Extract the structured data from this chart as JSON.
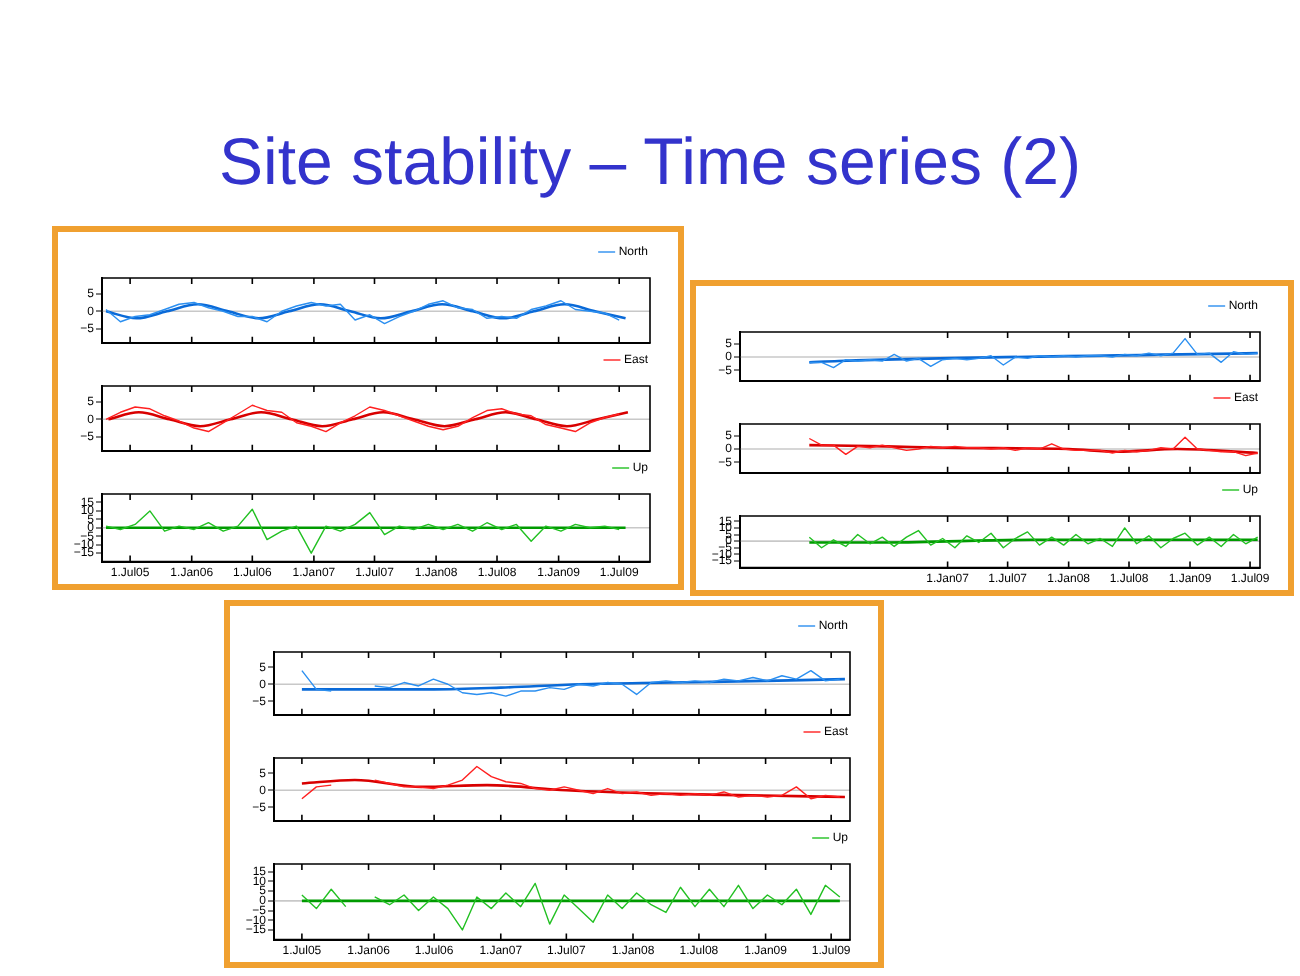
{
  "chart_data": [
    {
      "type": "line",
      "title": "Site stability – Time series (2)",
      "xlim": [
        "2005-04-08",
        "2009-10-01"
      ],
      "xticks": [
        {
          "value": "2005-07-01",
          "label": null
        },
        {
          "value": "2006-01-01",
          "label": null
        },
        {
          "value": "2006-07-01",
          "label": null
        },
        {
          "value": "2007-01-01",
          "label": null
        },
        {
          "value": "2007-07-01",
          "label": null
        },
        {
          "value": "2008-01-01",
          "label": null
        },
        {
          "value": "2008-07-01",
          "label": null
        },
        {
          "value": "2009-01-01",
          "label": null
        },
        {
          "value": "2009-07-01",
          "label": null
        }
      ],
      "ylim": [
        -9,
        9.5
      ],
      "yticks": [
        5,
        0,
        -5
      ],
      "tick_labels": "y",
      "legend": "top right",
      "marker": "none",
      "ref_lines": [
        {
          "axis": "y",
          "value": 0,
          "color": "#c8c8c8"
        }
      ],
      "series": [
        {
          "name": "North",
          "color": "#2b8ff0",
          "x": [
            "2005-04-20",
            "2005-06-02",
            "2005-07-16",
            "2005-08-29",
            "2005-10-12",
            "2005-11-24",
            "2006-01-08",
            "2006-02-20",
            "2006-04-05",
            "2006-05-19",
            "2006-07-01",
            "2006-08-14",
            "2006-09-27",
            "2006-11-10",
            "2006-12-24",
            "2007-02-06",
            "2007-03-21",
            "2007-05-04",
            "2007-06-17",
            "2007-07-31",
            "2007-09-13",
            "2007-10-26",
            "2007-12-09",
            "2008-01-22",
            "2008-03-06",
            "2008-04-19",
            "2008-06-01",
            "2008-07-15",
            "2008-08-28",
            "2008-10-11",
            "2008-11-24",
            "2009-01-08",
            "2009-02-20",
            "2009-04-05",
            "2009-05-19",
            "2009-07-01"
          ],
          "values": [
            0.5,
            -3,
            -1.5,
            -1,
            0.5,
            2,
            2.5,
            1,
            0,
            -1.5,
            -1.5,
            -3,
            0,
            1.5,
            2.5,
            1.5,
            2,
            -2.5,
            -1,
            -3.5,
            -1.5,
            0,
            2,
            3,
            1,
            0.5,
            -2,
            -1.5,
            -2,
            0.5,
            1.5,
            3,
            0.5,
            0,
            -0.5,
            -2.5
          ]
        },
        {
          "color": "#0a6ad8",
          "x": [
            "2005-04-20",
            "2005-07-20",
            "2005-10-19",
            "2006-01-19",
            "2006-04-20",
            "2006-07-20",
            "2006-10-19",
            "2007-01-19",
            "2007-04-20",
            "2007-07-20",
            "2007-10-19",
            "2008-01-19",
            "2008-04-20",
            "2008-07-20",
            "2008-10-19",
            "2009-01-19",
            "2009-04-20",
            "2009-07-20"
          ],
          "values": [
            0,
            -2,
            0,
            2,
            0,
            -2,
            0,
            2,
            0,
            -2,
            0,
            2,
            0,
            -2,
            0,
            2,
            0,
            -2
          ]
        }
      ]
    },
    {
      "type": "line",
      "xlim": [
        "2005-04-08",
        "2009-10-01"
      ],
      "xticks": [
        {
          "value": "2005-07-01",
          "label": null
        },
        {
          "value": "2006-01-01",
          "label": null
        },
        {
          "value": "2006-07-01",
          "label": null
        },
        {
          "value": "2007-01-01",
          "label": null
        },
        {
          "value": "2007-07-01",
          "label": null
        },
        {
          "value": "2008-01-01",
          "label": null
        },
        {
          "value": "2008-07-01",
          "label": null
        },
        {
          "value": "2009-01-01",
          "label": null
        },
        {
          "value": "2009-07-01",
          "label": null
        }
      ],
      "ylim": [
        -9,
        9.5
      ],
      "yticks": [
        5,
        0,
        -5
      ],
      "tick_labels": "y",
      "legend": "top right",
      "marker": "none",
      "ref_lines": [
        {
          "axis": "y",
          "value": 0,
          "color": "#c8c8c8"
        }
      ],
      "series": [
        {
          "name": "East",
          "color": "#ff2020",
          "x": [
            "2005-04-20",
            "2005-06-02",
            "2005-07-16",
            "2005-08-29",
            "2005-10-12",
            "2005-11-24",
            "2006-01-08",
            "2006-02-20",
            "2006-04-05",
            "2006-05-19",
            "2006-07-01",
            "2006-08-14",
            "2006-09-27",
            "2006-11-10",
            "2006-12-24",
            "2007-02-06",
            "2007-03-21",
            "2007-05-04",
            "2007-06-17",
            "2007-07-31",
            "2007-09-13",
            "2007-10-26",
            "2007-12-09",
            "2008-01-22",
            "2008-03-06",
            "2008-04-19",
            "2008-06-01",
            "2008-07-15",
            "2008-08-28",
            "2008-10-11",
            "2008-11-24",
            "2009-01-08",
            "2009-02-20",
            "2009-04-05",
            "2009-05-19",
            "2009-07-01"
          ],
          "values": [
            0,
            2,
            3.5,
            3,
            1,
            -0.5,
            -2.5,
            -3.5,
            -1,
            1.5,
            4,
            2.5,
            2,
            -1,
            -2,
            -3.5,
            -1,
            1,
            3.5,
            2.5,
            1,
            -0.5,
            -2,
            -3,
            -2,
            0.5,
            2.5,
            3,
            1.5,
            1,
            -1.5,
            -2.5,
            -3.5,
            -1,
            0.5,
            1.5
          ]
        },
        {
          "color": "#d80000",
          "x": [
            "2005-04-27",
            "2005-07-27",
            "2005-10-26",
            "2006-01-26",
            "2006-04-27",
            "2006-07-27",
            "2006-10-26",
            "2007-01-26",
            "2007-04-27",
            "2007-07-27",
            "2007-10-26",
            "2008-01-26",
            "2008-04-27",
            "2008-07-27",
            "2008-10-26",
            "2009-01-26",
            "2009-04-27",
            "2009-07-27"
          ],
          "values": [
            0,
            2,
            0,
            -2,
            0,
            2,
            0,
            -2,
            0,
            2,
            0,
            -2,
            0,
            2,
            0,
            -2,
            0,
            2
          ]
        }
      ]
    },
    {
      "type": "line",
      "xlim": [
        "2005-04-08",
        "2009-10-01"
      ],
      "xticks": [
        {
          "value": "2005-07-01",
          "label": "1.Jul05"
        },
        {
          "value": "2006-01-01",
          "label": "1.Jan06"
        },
        {
          "value": "2006-07-01",
          "label": "1.Jul06"
        },
        {
          "value": "2007-01-01",
          "label": "1.Jan07"
        },
        {
          "value": "2007-07-01",
          "label": "1.Jul07"
        },
        {
          "value": "2008-01-01",
          "label": "1.Jan08"
        },
        {
          "value": "2008-07-01",
          "label": "1.Jul08"
        },
        {
          "value": "2009-01-01",
          "label": "1.Jan09"
        },
        {
          "value": "2009-07-01",
          "label": "1.Jul09"
        }
      ],
      "ylim": [
        -20,
        20
      ],
      "yticks": [
        15,
        10,
        5,
        0,
        -5,
        -10,
        -15
      ],
      "legend": "top right",
      "marker": "none",
      "ref_lines": [
        {
          "axis": "y",
          "value": 0,
          "color": "#c8c8c8"
        }
      ],
      "series": [
        {
          "name": "Up",
          "color": "#22c022",
          "x": [
            "2005-04-20",
            "2005-06-02",
            "2005-07-16",
            "2005-08-29",
            "2005-10-12",
            "2005-11-24",
            "2006-01-08",
            "2006-02-20",
            "2006-04-05",
            "2006-05-19",
            "2006-07-01",
            "2006-08-14",
            "2006-09-27",
            "2006-11-10",
            "2006-12-24",
            "2007-02-06",
            "2007-03-21",
            "2007-05-04",
            "2007-06-17",
            "2007-07-31",
            "2007-09-13",
            "2007-10-26",
            "2007-12-09",
            "2008-01-22",
            "2008-03-06",
            "2008-04-19",
            "2008-06-01",
            "2008-07-15",
            "2008-08-28",
            "2008-10-11",
            "2008-11-24",
            "2009-01-08",
            "2009-02-20",
            "2009-04-05",
            "2009-05-19",
            "2009-07-01"
          ],
          "values": [
            1,
            -1,
            2,
            10,
            -2,
            1,
            -1,
            3,
            -2,
            1,
            11,
            -7,
            -2,
            1,
            -15,
            1,
            -2,
            2,
            9,
            -4,
            1,
            -1,
            2,
            -1,
            2,
            -2,
            3,
            -1,
            2,
            -8,
            1,
            -2,
            2,
            0,
            1,
            -1
          ]
        },
        {
          "color": "#009a00",
          "x": [
            "2005-04-20",
            "2009-07-20"
          ],
          "values": [
            0,
            0
          ]
        }
      ]
    },
    {
      "type": "line",
      "xlim": [
        "2005-04-15",
        "2009-07-31"
      ],
      "xticks": [
        {
          "value": "2007-01-01",
          "label": null
        },
        {
          "value": "2007-07-01",
          "label": null
        },
        {
          "value": "2008-01-01",
          "label": null
        },
        {
          "value": "2008-07-01",
          "label": null
        },
        {
          "value": "2009-01-01",
          "label": null
        },
        {
          "value": "2009-07-01",
          "label": null
        }
      ],
      "ylim": [
        -9,
        9.5
      ],
      "yticks": [
        5,
        0,
        -5
      ],
      "tick_labels": "y",
      "legend": "top right",
      "marker": "none",
      "ref_lines": [
        {
          "axis": "y",
          "value": 0,
          "color": "#c8c8c8"
        }
      ],
      "series": [
        {
          "name": "North",
          "color": "#2b8ff0",
          "x": [
            "2005-11-10",
            "2005-12-17",
            "2006-01-22",
            "2006-02-28",
            "2006-04-05",
            "2006-05-12",
            "2006-06-18",
            "2006-07-24",
            "2006-08-30",
            "2006-10-05",
            "2006-11-11",
            "2006-12-17",
            "2007-01-23",
            "2007-02-28",
            "2007-04-05",
            "2007-05-12",
            "2007-06-18",
            "2007-07-24",
            "2007-08-30",
            "2007-10-05",
            "2007-11-11",
            "2007-12-17",
            "2008-01-23",
            "2008-02-28",
            "2008-04-05",
            "2008-05-12",
            "2008-06-18",
            "2008-07-24",
            "2008-08-30",
            "2008-10-05",
            "2008-11-11",
            "2008-12-17",
            "2009-01-23",
            "2009-02-28",
            "2009-04-05",
            "2009-05-12",
            "2009-06-18",
            "2009-07-24"
          ],
          "values": [
            -2,
            -2,
            -4,
            -1,
            -1.5,
            -1,
            -1.5,
            1,
            -1.5,
            -0.5,
            -3.5,
            -1,
            -0.5,
            -1,
            -0.5,
            0.5,
            -3,
            0,
            -0.5,
            0.5,
            0,
            0.5,
            0,
            0.5,
            0.5,
            0,
            1,
            0.5,
            1.5,
            0.5,
            1.5,
            7,
            1,
            1.5,
            -2,
            2,
            1,
            1.5
          ]
        },
        {
          "color": "#0a6ad8",
          "x": [
            "2005-11-10",
            "2006-02-06",
            "2009-07-24"
          ],
          "values": [
            -2,
            -1.5,
            1.5
          ]
        }
      ]
    },
    {
      "type": "line",
      "xlim": [
        "2005-04-15",
        "2009-07-31"
      ],
      "xticks": [
        {
          "value": "2007-01-01",
          "label": null
        },
        {
          "value": "2007-07-01",
          "label": null
        },
        {
          "value": "2008-01-01",
          "label": null
        },
        {
          "value": "2008-07-01",
          "label": null
        },
        {
          "value": "2009-01-01",
          "label": null
        },
        {
          "value": "2009-07-01",
          "label": null
        }
      ],
      "ylim": [
        -9,
        9.5
      ],
      "yticks": [
        5,
        0,
        -5
      ],
      "tick_labels": "y",
      "legend": "top right",
      "marker": "none",
      "ref_lines": [
        {
          "axis": "y",
          "value": 0,
          "color": "#c8c8c8"
        }
      ],
      "series": [
        {
          "name": "East",
          "color": "#ff2020",
          "x": [
            "2005-11-10",
            "2005-12-17",
            "2006-01-22",
            "2006-02-28",
            "2006-04-05",
            "2006-05-12",
            "2006-06-18",
            "2006-07-24",
            "2006-08-30",
            "2006-10-05",
            "2006-11-11",
            "2006-12-17",
            "2007-01-23",
            "2007-02-28",
            "2007-04-05",
            "2007-05-12",
            "2007-06-18",
            "2007-07-24",
            "2007-08-30",
            "2007-10-05",
            "2007-11-11",
            "2007-12-17",
            "2008-01-23",
            "2008-02-28",
            "2008-04-05",
            "2008-05-12",
            "2008-06-18",
            "2008-07-24",
            "2008-08-30",
            "2008-10-05",
            "2008-11-11",
            "2008-12-17",
            "2009-01-23",
            "2009-02-28",
            "2009-04-05",
            "2009-05-12",
            "2009-06-18",
            "2009-07-24"
          ],
          "values": [
            4,
            1.5,
            1.5,
            -2,
            1,
            0.5,
            1.5,
            0.5,
            -0.5,
            0,
            1,
            0.5,
            1,
            0.5,
            0.5,
            0,
            0.5,
            -0.5,
            0.5,
            0,
            2,
            0,
            -0.5,
            -0.5,
            -0.5,
            -1.5,
            -0.5,
            -1,
            -0.5,
            0.5,
            0,
            4.5,
            0,
            -0.5,
            -1,
            -1,
            -2.5,
            -1.5
          ]
        },
        {
          "color": "#d80000",
          "x": [
            "2005-11-10",
            "2006-07-01",
            "2007-01-01",
            "2008-01-01",
            "2008-05-27",
            "2008-11-24",
            "2009-07-24"
          ],
          "values": [
            1.5,
            1,
            0.5,
            0,
            -1,
            0,
            -1.5
          ]
        }
      ]
    },
    {
      "type": "line",
      "xlim": [
        "2005-04-15",
        "2009-07-31"
      ],
      "xticks": [
        {
          "value": "2007-01-01",
          "label": "1.Jan07"
        },
        {
          "value": "2007-07-01",
          "label": "1.Jul07"
        },
        {
          "value": "2008-01-01",
          "label": "1.Jan08"
        },
        {
          "value": "2008-07-01",
          "label": "1.Jul08"
        },
        {
          "value": "2009-01-01",
          "label": "1.Jan09"
        },
        {
          "value": "2009-07-01",
          "label": "1.Jul09"
        }
      ],
      "ylim": [
        -20,
        19
      ],
      "yticks": [
        15,
        10,
        5,
        0,
        -5,
        -10,
        -15
      ],
      "legend": "top right",
      "marker": "none",
      "ref_lines": [
        {
          "axis": "y",
          "value": 0,
          "color": "#c8c8c8"
        }
      ],
      "series": [
        {
          "name": "Up",
          "color": "#22c022",
          "x": [
            "2005-11-10",
            "2005-12-17",
            "2006-01-22",
            "2006-02-28",
            "2006-04-05",
            "2006-05-12",
            "2006-06-18",
            "2006-07-24",
            "2006-08-30",
            "2006-10-05",
            "2006-11-11",
            "2006-12-17",
            "2007-01-23",
            "2007-02-28",
            "2007-04-05",
            "2007-05-12",
            "2007-06-18",
            "2007-07-24",
            "2007-08-30",
            "2007-10-05",
            "2007-11-11",
            "2007-12-17",
            "2008-01-23",
            "2008-02-28",
            "2008-04-05",
            "2008-05-12",
            "2008-06-18",
            "2008-07-24",
            "2008-08-30",
            "2008-10-05",
            "2008-11-11",
            "2008-12-17",
            "2009-01-23",
            "2009-02-28",
            "2009-04-05",
            "2009-05-12",
            "2009-06-18",
            "2009-07-24"
          ],
          "values": [
            3,
            -5,
            1,
            -4,
            5,
            -2,
            3,
            -4,
            3,
            8,
            -3,
            2,
            -5,
            4,
            -1,
            6,
            -5,
            2,
            7,
            -3,
            3,
            -3,
            5,
            -2,
            2,
            -4,
            10,
            -2,
            4,
            -5,
            2,
            6,
            -3,
            3,
            -4,
            5,
            -2,
            3
          ]
        },
        {
          "color": "#009a00",
          "x": [
            "2005-11-10",
            "2006-07-01",
            "2007-09-13",
            "2008-07-01",
            "2009-07-24"
          ],
          "values": [
            -1,
            -1,
            1,
            1,
            1
          ]
        }
      ]
    },
    {
      "type": "line",
      "xlim": [
        "2005-04-15",
        "2009-08-22"
      ],
      "xticks": [
        {
          "value": "2005-07-01",
          "label": null
        },
        {
          "value": "2006-01-01",
          "label": null
        },
        {
          "value": "2006-07-01",
          "label": null
        },
        {
          "value": "2007-01-01",
          "label": null
        },
        {
          "value": "2007-07-01",
          "label": null
        },
        {
          "value": "2008-01-01",
          "label": null
        },
        {
          "value": "2008-07-01",
          "label": null
        },
        {
          "value": "2009-01-01",
          "label": null
        },
        {
          "value": "2009-07-01",
          "label": null
        }
      ],
      "ylim": [
        -9,
        9.5
      ],
      "yticks": [
        5,
        0,
        -5
      ],
      "tick_labels": "y",
      "legend": "top right",
      "marker": "none",
      "ref_lines": [
        {
          "axis": "y",
          "value": 0,
          "color": "#c8c8c8"
        }
      ],
      "series": [
        {
          "name": "North",
          "color": "#2b8ff0",
          "x": [
            "2005-07-01",
            "2005-08-10",
            "2005-09-20",
            "2005-10-30",
            "2005-12-09",
            "2006-01-18",
            "2006-02-28",
            "2006-04-09",
            "2006-05-19",
            "2006-06-29",
            "2006-08-08",
            "2006-09-17",
            "2006-10-27",
            "2006-12-06",
            "2007-01-15",
            "2007-02-25",
            "2007-04-06",
            "2007-05-16",
            "2007-06-25",
            "2007-08-04",
            "2007-09-13",
            "2007-10-23",
            "2007-12-02",
            "2008-01-11",
            "2008-02-20",
            "2008-04-01",
            "2008-05-11",
            "2008-06-20",
            "2008-07-30",
            "2008-09-08",
            "2008-10-18",
            "2008-11-27",
            "2009-01-06",
            "2009-02-15",
            "2009-03-27",
            "2009-05-06",
            "2009-06-15",
            "2009-07-25"
          ],
          "values": [
            4,
            -1.5,
            -2,
            null,
            null,
            -0.5,
            -1,
            0.5,
            -0.5,
            1.5,
            0,
            -2.5,
            -3,
            -2.5,
            -3.5,
            -2,
            -2,
            -1,
            -1.5,
            0,
            -0.5,
            0.5,
            0,
            -3,
            0.5,
            1,
            0.5,
            1,
            0.5,
            1.5,
            1,
            2,
            1,
            2.5,
            1.5,
            4,
            1,
            1.5
          ]
        },
        {
          "color": "#0a6ad8",
          "x": [
            "2005-07-01",
            "2006-07-01",
            "2007-01-01",
            "2007-08-08",
            "2008-04-19",
            "2009-01-01",
            "2009-08-08"
          ],
          "values": [
            -1.5,
            -1.5,
            -1,
            0,
            0.5,
            1,
            1.5
          ]
        }
      ]
    },
    {
      "type": "line",
      "xlim": [
        "2005-04-15",
        "2009-08-22"
      ],
      "xticks": [
        {
          "value": "2005-07-01",
          "label": null
        },
        {
          "value": "2006-01-01",
          "label": null
        },
        {
          "value": "2006-07-01",
          "label": null
        },
        {
          "value": "2007-01-01",
          "label": null
        },
        {
          "value": "2007-07-01",
          "label": null
        },
        {
          "value": "2008-01-01",
          "label": null
        },
        {
          "value": "2008-07-01",
          "label": null
        },
        {
          "value": "2009-01-01",
          "label": null
        },
        {
          "value": "2009-07-01",
          "label": null
        }
      ],
      "ylim": [
        -9,
        9.5
      ],
      "yticks": [
        5,
        0,
        -5
      ],
      "tick_labels": "y",
      "legend": "top right",
      "marker": "none",
      "ref_lines": [
        {
          "axis": "y",
          "value": 0,
          "color": "#c8c8c8"
        }
      ],
      "series": [
        {
          "name": "East",
          "color": "#ff2020",
          "x": [
            "2005-07-01",
            "2005-08-10",
            "2005-09-20",
            "2005-10-30",
            "2005-12-09",
            "2006-01-18",
            "2006-02-28",
            "2006-04-09",
            "2006-05-19",
            "2006-06-29",
            "2006-08-08",
            "2006-09-17",
            "2006-10-27",
            "2006-12-06",
            "2007-01-15",
            "2007-02-25",
            "2007-04-06",
            "2007-05-16",
            "2007-06-25",
            "2007-08-04",
            "2007-09-13",
            "2007-10-23",
            "2007-12-02",
            "2008-01-11",
            "2008-02-20",
            "2008-04-01",
            "2008-05-11",
            "2008-06-20",
            "2008-07-30",
            "2008-09-08",
            "2008-10-18",
            "2008-11-27",
            "2009-01-06",
            "2009-02-15",
            "2009-03-27",
            "2009-05-06",
            "2009-06-15",
            "2009-07-25"
          ],
          "values": [
            -2.5,
            1,
            1.5,
            null,
            null,
            3,
            2,
            1,
            1,
            0.5,
            1.5,
            3,
            7,
            4,
            2.5,
            2,
            0.5,
            0,
            1,
            0,
            -1,
            0.5,
            -1,
            -0.5,
            -1.5,
            -1,
            -1.5,
            -1,
            -1.5,
            -0.5,
            -2,
            -1.5,
            -2,
            -1.5,
            1,
            -2.5,
            -1.5,
            -2
          ]
        },
        {
          "color": "#d80000",
          "x": [
            "2005-07-01",
            "2005-11-24",
            "2006-05-27",
            "2006-11-24",
            "2007-07-01",
            "2008-03-14",
            "2008-11-24",
            "2009-08-08"
          ],
          "values": [
            2,
            3,
            1,
            1.5,
            0,
            -1,
            -1.5,
            -2
          ]
        }
      ]
    },
    {
      "type": "line",
      "xlim": [
        "2005-04-15",
        "2009-08-22"
      ],
      "xticks": [
        {
          "value": "2005-07-01",
          "label": "1.Jul05"
        },
        {
          "value": "2006-01-01",
          "label": "1.Jan06"
        },
        {
          "value": "2006-07-01",
          "label": "1.Jul06"
        },
        {
          "value": "2007-01-01",
          "label": "1.Jan07"
        },
        {
          "value": "2007-07-01",
          "label": "1.Jul07"
        },
        {
          "value": "2008-01-01",
          "label": "1.Jan08"
        },
        {
          "value": "2008-07-01",
          "label": "1.Jul08"
        },
        {
          "value": "2009-01-01",
          "label": "1.Jan09"
        },
        {
          "value": "2009-07-01",
          "label": "1.Jul09"
        }
      ],
      "ylim": [
        -20,
        19
      ],
      "yticks": [
        15,
        10,
        5,
        0,
        -5,
        -10,
        -15
      ],
      "legend": "top right",
      "marker": "none",
      "ref_lines": [
        {
          "axis": "y",
          "value": 0,
          "color": "#c8c8c8"
        }
      ],
      "series": [
        {
          "name": "Up",
          "color": "#22c022",
          "x": [
            "2005-07-01",
            "2005-08-10",
            "2005-09-20",
            "2005-10-30",
            "2005-12-09",
            "2006-01-18",
            "2006-02-28",
            "2006-04-09",
            "2006-05-19",
            "2006-06-29",
            "2006-08-08",
            "2006-09-17",
            "2006-10-27",
            "2006-12-06",
            "2007-01-15",
            "2007-02-25",
            "2007-04-06",
            "2007-05-16",
            "2007-06-25",
            "2007-08-04",
            "2007-09-13",
            "2007-10-23",
            "2007-12-02",
            "2008-01-11",
            "2008-02-20",
            "2008-04-01",
            "2008-05-11",
            "2008-06-20",
            "2008-07-30",
            "2008-09-08",
            "2008-10-18",
            "2008-11-27",
            "2009-01-06",
            "2009-02-15",
            "2009-03-27",
            "2009-05-06",
            "2009-06-15",
            "2009-07-25"
          ],
          "values": [
            3,
            -4,
            6,
            -3,
            null,
            2,
            -2,
            3,
            -5,
            2,
            -4,
            -15,
            2,
            -4,
            4,
            -3,
            9,
            -12,
            3,
            -4,
            -11,
            3,
            -4,
            4,
            -2,
            -6,
            7,
            -3,
            6,
            -3,
            8,
            -4,
            3,
            -2,
            6,
            -7,
            8,
            2
          ]
        },
        {
          "color": "#009a00",
          "x": [
            "2005-07-01",
            "2009-07-25"
          ],
          "values": [
            0,
            0
          ]
        }
      ]
    }
  ]
}
